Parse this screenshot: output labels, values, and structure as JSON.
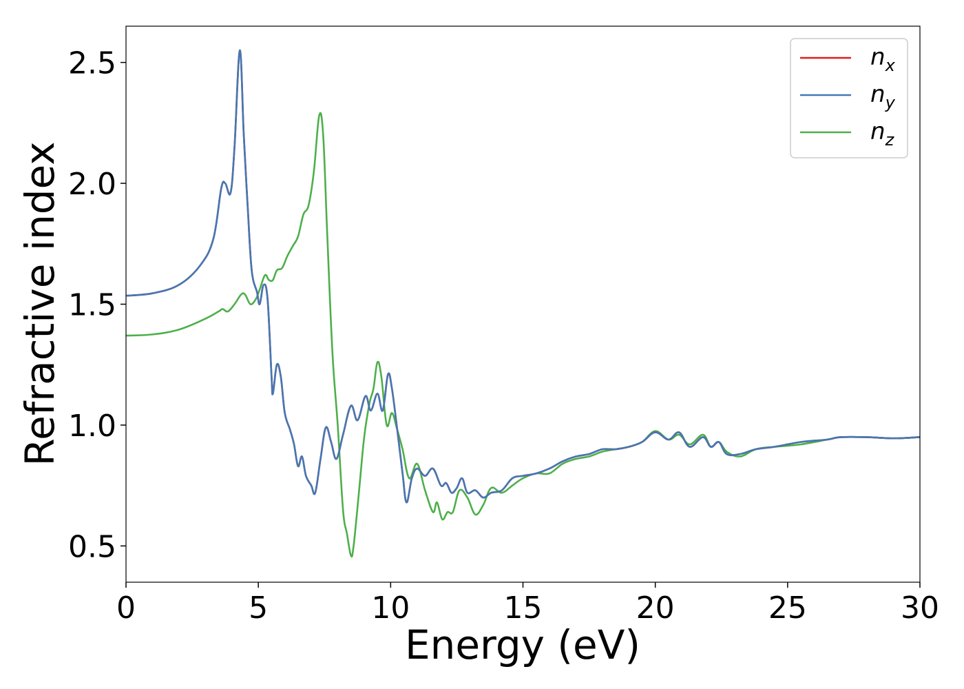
{
  "chart_data": {
    "type": "line",
    "title": "",
    "xlabel": "Energy (eV)",
    "ylabel": "Refractive index",
    "xlim": [
      0,
      30
    ],
    "ylim": [
      0.35,
      2.65
    ],
    "xticks": [
      0,
      5,
      10,
      15,
      20,
      25,
      30
    ],
    "xtick_labels": [
      "0",
      "5",
      "10",
      "15",
      "20",
      "25",
      "30"
    ],
    "yticks": [
      0.5,
      1.0,
      1.5,
      2.0,
      2.5
    ],
    "ytick_labels": [
      "0.5",
      "1.0",
      "1.5",
      "2.0",
      "2.5"
    ],
    "grid": false,
    "legend_position": "top-right",
    "series": [
      {
        "name": "n_x",
        "label_main": "n",
        "label_sub": "x",
        "color": "#e41a1c",
        "points": [
          [
            0,
            1.535
          ],
          [
            1,
            1.545
          ],
          [
            2,
            1.58
          ],
          [
            2.8,
            1.66
          ],
          [
            3.3,
            1.77
          ],
          [
            3.6,
            1.98
          ],
          [
            3.75,
            2.0
          ],
          [
            3.95,
            1.96
          ],
          [
            4.1,
            2.15
          ],
          [
            4.3,
            2.55
          ],
          [
            4.45,
            2.2
          ],
          [
            4.6,
            1.9
          ],
          [
            4.75,
            1.64
          ],
          [
            4.95,
            1.55
          ],
          [
            5.05,
            1.5
          ],
          [
            5.2,
            1.58
          ],
          [
            5.35,
            1.52
          ],
          [
            5.5,
            1.2
          ],
          [
            5.55,
            1.13
          ],
          [
            5.7,
            1.25
          ],
          [
            5.85,
            1.2
          ],
          [
            6.0,
            1.05
          ],
          [
            6.2,
            0.98
          ],
          [
            6.35,
            0.92
          ],
          [
            6.5,
            0.83
          ],
          [
            6.65,
            0.87
          ],
          [
            6.8,
            0.79
          ],
          [
            7.0,
            0.75
          ],
          [
            7.15,
            0.72
          ],
          [
            7.35,
            0.86
          ],
          [
            7.55,
            0.99
          ],
          [
            7.75,
            0.93
          ],
          [
            7.95,
            0.86
          ],
          [
            8.2,
            0.96
          ],
          [
            8.5,
            1.08
          ],
          [
            8.75,
            1.02
          ],
          [
            9.05,
            1.12
          ],
          [
            9.25,
            1.06
          ],
          [
            9.5,
            1.13
          ],
          [
            9.7,
            1.06
          ],
          [
            9.9,
            1.21
          ],
          [
            10.05,
            1.15
          ],
          [
            10.25,
            0.98
          ],
          [
            10.45,
            0.8
          ],
          [
            10.6,
            0.68
          ],
          [
            10.8,
            0.78
          ],
          [
            11.0,
            0.82
          ],
          [
            11.3,
            0.79
          ],
          [
            11.6,
            0.82
          ],
          [
            11.9,
            0.75
          ],
          [
            12.1,
            0.76
          ],
          [
            12.3,
            0.72
          ],
          [
            12.5,
            0.74
          ],
          [
            12.7,
            0.78
          ],
          [
            12.9,
            0.72
          ],
          [
            13.2,
            0.73
          ],
          [
            13.5,
            0.7
          ],
          [
            13.8,
            0.72
          ],
          [
            14.2,
            0.73
          ],
          [
            14.6,
            0.78
          ],
          [
            15.0,
            0.79
          ],
          [
            15.5,
            0.8
          ],
          [
            16.0,
            0.82
          ],
          [
            16.5,
            0.85
          ],
          [
            17.0,
            0.87
          ],
          [
            17.5,
            0.88
          ],
          [
            18.0,
            0.9
          ],
          [
            18.5,
            0.9
          ],
          [
            19.0,
            0.91
          ],
          [
            19.5,
            0.93
          ],
          [
            20.0,
            0.97
          ],
          [
            20.5,
            0.94
          ],
          [
            20.9,
            0.97
          ],
          [
            21.3,
            0.91
          ],
          [
            21.8,
            0.95
          ],
          [
            22.1,
            0.91
          ],
          [
            22.4,
            0.93
          ],
          [
            22.7,
            0.88
          ],
          [
            23.2,
            0.88
          ],
          [
            23.8,
            0.9
          ],
          [
            24.5,
            0.91
          ],
          [
            25.5,
            0.93
          ],
          [
            26.5,
            0.94
          ],
          [
            27.0,
            0.95
          ],
          [
            28.0,
            0.95
          ],
          [
            29.0,
            0.945
          ],
          [
            30.0,
            0.95
          ]
        ]
      },
      {
        "name": "n_y",
        "label_main": "n",
        "label_sub": "y",
        "color": "#4478b4",
        "points": [
          [
            0,
            1.535
          ],
          [
            1,
            1.545
          ],
          [
            2,
            1.58
          ],
          [
            2.8,
            1.66
          ],
          [
            3.3,
            1.77
          ],
          [
            3.6,
            1.98
          ],
          [
            3.75,
            2.0
          ],
          [
            3.95,
            1.96
          ],
          [
            4.1,
            2.15
          ],
          [
            4.3,
            2.55
          ],
          [
            4.45,
            2.2
          ],
          [
            4.6,
            1.9
          ],
          [
            4.75,
            1.64
          ],
          [
            4.95,
            1.55
          ],
          [
            5.05,
            1.5
          ],
          [
            5.2,
            1.58
          ],
          [
            5.35,
            1.52
          ],
          [
            5.5,
            1.2
          ],
          [
            5.55,
            1.13
          ],
          [
            5.7,
            1.25
          ],
          [
            5.85,
            1.2
          ],
          [
            6.0,
            1.05
          ],
          [
            6.2,
            0.98
          ],
          [
            6.35,
            0.92
          ],
          [
            6.5,
            0.83
          ],
          [
            6.65,
            0.87
          ],
          [
            6.8,
            0.79
          ],
          [
            7.0,
            0.75
          ],
          [
            7.15,
            0.72
          ],
          [
            7.35,
            0.86
          ],
          [
            7.55,
            0.99
          ],
          [
            7.75,
            0.93
          ],
          [
            7.95,
            0.86
          ],
          [
            8.2,
            0.96
          ],
          [
            8.5,
            1.08
          ],
          [
            8.75,
            1.02
          ],
          [
            9.05,
            1.12
          ],
          [
            9.25,
            1.06
          ],
          [
            9.5,
            1.13
          ],
          [
            9.7,
            1.06
          ],
          [
            9.9,
            1.21
          ],
          [
            10.05,
            1.15
          ],
          [
            10.25,
            0.98
          ],
          [
            10.45,
            0.8
          ],
          [
            10.6,
            0.68
          ],
          [
            10.8,
            0.78
          ],
          [
            11.0,
            0.82
          ],
          [
            11.3,
            0.79
          ],
          [
            11.6,
            0.82
          ],
          [
            11.9,
            0.75
          ],
          [
            12.1,
            0.76
          ],
          [
            12.3,
            0.72
          ],
          [
            12.5,
            0.74
          ],
          [
            12.7,
            0.78
          ],
          [
            12.9,
            0.72
          ],
          [
            13.2,
            0.73
          ],
          [
            13.5,
            0.7
          ],
          [
            13.8,
            0.72
          ],
          [
            14.2,
            0.73
          ],
          [
            14.6,
            0.78
          ],
          [
            15.0,
            0.79
          ],
          [
            15.5,
            0.8
          ],
          [
            16.0,
            0.82
          ],
          [
            16.5,
            0.85
          ],
          [
            17.0,
            0.87
          ],
          [
            17.5,
            0.88
          ],
          [
            18.0,
            0.9
          ],
          [
            18.5,
            0.9
          ],
          [
            19.0,
            0.91
          ],
          [
            19.5,
            0.93
          ],
          [
            20.0,
            0.97
          ],
          [
            20.5,
            0.94
          ],
          [
            20.9,
            0.97
          ],
          [
            21.3,
            0.91
          ],
          [
            21.8,
            0.95
          ],
          [
            22.1,
            0.91
          ],
          [
            22.4,
            0.93
          ],
          [
            22.7,
            0.88
          ],
          [
            23.2,
            0.88
          ],
          [
            23.8,
            0.9
          ],
          [
            24.5,
            0.91
          ],
          [
            25.5,
            0.93
          ],
          [
            26.5,
            0.94
          ],
          [
            27.0,
            0.95
          ],
          [
            28.0,
            0.95
          ],
          [
            29.0,
            0.945
          ],
          [
            30.0,
            0.95
          ]
        ]
      },
      {
        "name": "n_z",
        "label_main": "n",
        "label_sub": "z",
        "color": "#4daf4a",
        "points": [
          [
            0,
            1.37
          ],
          [
            1,
            1.375
          ],
          [
            2,
            1.395
          ],
          [
            3,
            1.44
          ],
          [
            3.5,
            1.47
          ],
          [
            3.65,
            1.48
          ],
          [
            3.85,
            1.47
          ],
          [
            4.1,
            1.5
          ],
          [
            4.35,
            1.54
          ],
          [
            4.5,
            1.54
          ],
          [
            4.7,
            1.5
          ],
          [
            4.9,
            1.52
          ],
          [
            5.05,
            1.56
          ],
          [
            5.25,
            1.62
          ],
          [
            5.4,
            1.6
          ],
          [
            5.55,
            1.6
          ],
          [
            5.7,
            1.64
          ],
          [
            5.9,
            1.65
          ],
          [
            6.1,
            1.7
          ],
          [
            6.3,
            1.74
          ],
          [
            6.5,
            1.78
          ],
          [
            6.7,
            1.87
          ],
          [
            6.9,
            1.91
          ],
          [
            7.1,
            2.05
          ],
          [
            7.3,
            2.28
          ],
          [
            7.45,
            2.2
          ],
          [
            7.6,
            1.8
          ],
          [
            7.8,
            1.3
          ],
          [
            8.0,
            1.0
          ],
          [
            8.2,
            0.65
          ],
          [
            8.35,
            0.55
          ],
          [
            8.5,
            0.46
          ],
          [
            8.6,
            0.5
          ],
          [
            8.8,
            0.72
          ],
          [
            9.0,
            0.95
          ],
          [
            9.2,
            1.09
          ],
          [
            9.35,
            1.15
          ],
          [
            9.5,
            1.26
          ],
          [
            9.65,
            1.2
          ],
          [
            9.85,
            1.0
          ],
          [
            10.05,
            1.05
          ],
          [
            10.25,
            0.98
          ],
          [
            10.45,
            0.9
          ],
          [
            10.7,
            0.78
          ],
          [
            11.0,
            0.84
          ],
          [
            11.3,
            0.73
          ],
          [
            11.6,
            0.64
          ],
          [
            11.75,
            0.68
          ],
          [
            11.95,
            0.61
          ],
          [
            12.15,
            0.64
          ],
          [
            12.35,
            0.64
          ],
          [
            12.6,
            0.73
          ],
          [
            12.9,
            0.7
          ],
          [
            13.2,
            0.63
          ],
          [
            13.5,
            0.67
          ],
          [
            13.8,
            0.74
          ],
          [
            14.2,
            0.72
          ],
          [
            14.6,
            0.75
          ],
          [
            15.0,
            0.78
          ],
          [
            15.5,
            0.8
          ],
          [
            16.0,
            0.8
          ],
          [
            16.5,
            0.84
          ],
          [
            17.0,
            0.86
          ],
          [
            17.5,
            0.87
          ],
          [
            18.0,
            0.89
          ],
          [
            18.5,
            0.9
          ],
          [
            19.0,
            0.91
          ],
          [
            19.5,
            0.93
          ],
          [
            20.0,
            0.975
          ],
          [
            20.5,
            0.94
          ],
          [
            20.9,
            0.96
          ],
          [
            21.3,
            0.92
          ],
          [
            21.8,
            0.96
          ],
          [
            22.1,
            0.91
          ],
          [
            22.4,
            0.93
          ],
          [
            22.7,
            0.89
          ],
          [
            23.2,
            0.87
          ],
          [
            23.8,
            0.9
          ],
          [
            24.5,
            0.91
          ],
          [
            25.5,
            0.92
          ],
          [
            26.5,
            0.94
          ],
          [
            27.0,
            0.95
          ],
          [
            28.0,
            0.95
          ],
          [
            29.0,
            0.945
          ],
          [
            30.0,
            0.95
          ]
        ]
      }
    ]
  }
}
